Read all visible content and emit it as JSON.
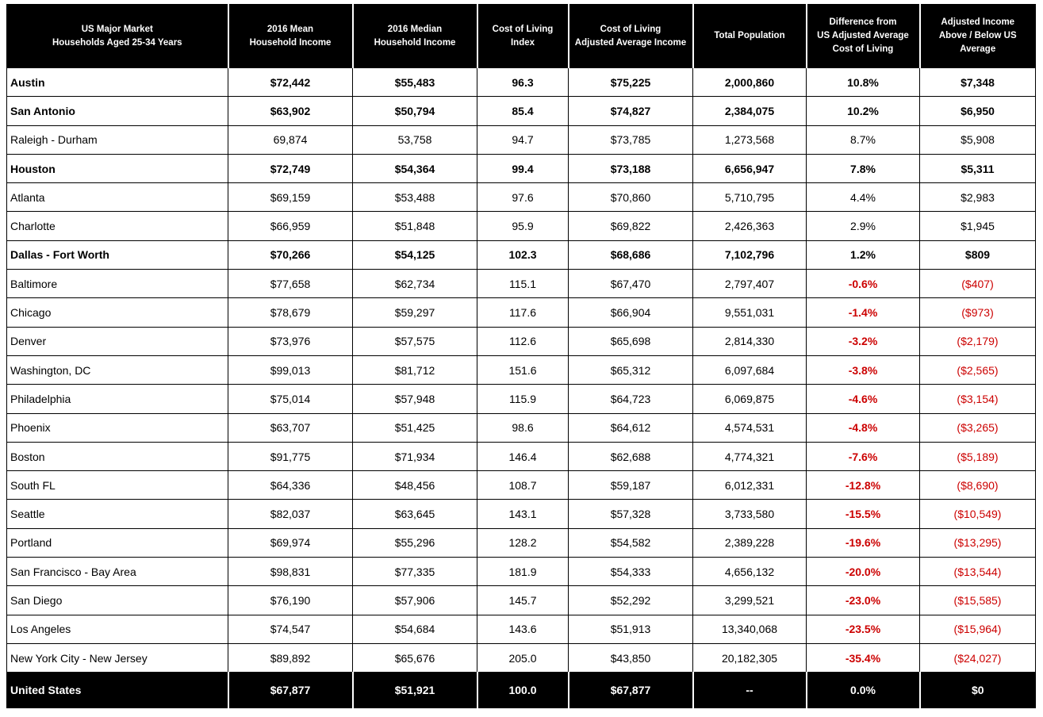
{
  "chart_data": {
    "type": "table",
    "columns": [
      [
        "US Major Market",
        "Households Aged 25-34 Years"
      ],
      [
        "2016 Mean",
        "Household Income"
      ],
      [
        "2016 Median",
        "Household Income"
      ],
      [
        "Cost of Living",
        "Index"
      ],
      [
        "Cost of Living",
        "Adjusted Average Income"
      ],
      [
        "Total Population"
      ],
      [
        "Difference from",
        "US Adjusted Average",
        "Cost of Living"
      ],
      [
        "Adjusted Income",
        "Above / Below US Average"
      ]
    ],
    "rows": [
      {
        "bold": true,
        "cells": [
          "Austin",
          "$72,442",
          "$55,483",
          "96.3",
          "$75,225",
          "2,000,860",
          "10.8%",
          "$7,348"
        ]
      },
      {
        "bold": true,
        "cells": [
          "San Antonio",
          "$63,902",
          "$50,794",
          "85.4",
          "$74,827",
          "2,384,075",
          "10.2%",
          "$6,950"
        ]
      },
      {
        "bold": false,
        "cells": [
          "Raleigh - Durham",
          "69,874",
          "53,758",
          "94.7",
          "$73,785",
          "1,273,568",
          "8.7%",
          "$5,908"
        ]
      },
      {
        "bold": true,
        "cells": [
          "Houston",
          "$72,749",
          "$54,364",
          "99.4",
          "$73,188",
          "6,656,947",
          "7.8%",
          "$5,311"
        ]
      },
      {
        "bold": false,
        "cells": [
          "Atlanta",
          "$69,159",
          "$53,488",
          "97.6",
          "$70,860",
          "5,710,795",
          "4.4%",
          "$2,983"
        ]
      },
      {
        "bold": false,
        "cells": [
          "Charlotte",
          "$66,959",
          "$51,848",
          "95.9",
          "$69,822",
          "2,426,363",
          "2.9%",
          "$1,945"
        ]
      },
      {
        "bold": true,
        "cells": [
          "Dallas - Fort Worth",
          "$70,266",
          "$54,125",
          "102.3",
          "$68,686",
          "7,102,796",
          "1.2%",
          "$809"
        ]
      },
      {
        "bold": false,
        "cells": [
          "Baltimore",
          "$77,658",
          "$62,734",
          "115.1",
          "$67,470",
          "2,797,407",
          "-0.6%",
          "($407)"
        ]
      },
      {
        "bold": false,
        "cells": [
          "Chicago",
          "$78,679",
          "$59,297",
          "117.6",
          "$66,904",
          "9,551,031",
          "-1.4%",
          "($973)"
        ]
      },
      {
        "bold": false,
        "cells": [
          "Denver",
          "$73,976",
          "$57,575",
          "112.6",
          "$65,698",
          "2,814,330",
          "-3.2%",
          "($2,179)"
        ]
      },
      {
        "bold": false,
        "cells": [
          "Washington, DC",
          "$99,013",
          "$81,712",
          "151.6",
          "$65,312",
          "6,097,684",
          "-3.8%",
          "($2,565)"
        ]
      },
      {
        "bold": false,
        "cells": [
          "Philadelphia",
          "$75,014",
          "$57,948",
          "115.9",
          "$64,723",
          "6,069,875",
          "-4.6%",
          "($3,154)"
        ]
      },
      {
        "bold": false,
        "cells": [
          "Phoenix",
          "$63,707",
          "$51,425",
          "98.6",
          "$64,612",
          "4,574,531",
          "-4.8%",
          "($3,265)"
        ]
      },
      {
        "bold": false,
        "cells": [
          "Boston",
          "$91,775",
          "$71,934",
          "146.4",
          "$62,688",
          "4,774,321",
          "-7.6%",
          "($5,189)"
        ]
      },
      {
        "bold": false,
        "cells": [
          "South FL",
          "$64,336",
          "$48,456",
          "108.7",
          "$59,187",
          "6,012,331",
          "-12.8%",
          "($8,690)"
        ]
      },
      {
        "bold": false,
        "cells": [
          "Seattle",
          "$82,037",
          "$63,645",
          "143.1",
          "$57,328",
          "3,733,580",
          "-15.5%",
          "($10,549)"
        ]
      },
      {
        "bold": false,
        "cells": [
          "Portland",
          "$69,974",
          "$55,296",
          "128.2",
          "$54,582",
          "2,389,228",
          "-19.6%",
          "($13,295)"
        ]
      },
      {
        "bold": false,
        "cells": [
          "San Francisco - Bay Area",
          "$98,831",
          "$77,335",
          "181.9",
          "$54,333",
          "4,656,132",
          "-20.0%",
          "($13,544)"
        ]
      },
      {
        "bold": false,
        "cells": [
          "San Diego",
          "$76,190",
          "$57,906",
          "145.7",
          "$52,292",
          "3,299,521",
          "-23.0%",
          "($15,585)"
        ]
      },
      {
        "bold": false,
        "cells": [
          "Los Angeles",
          "$74,547",
          "$54,684",
          "143.6",
          "$51,913",
          "13,340,068",
          "-23.5%",
          "($15,964)"
        ]
      },
      {
        "bold": false,
        "cells": [
          "New York City - New Jersey",
          "$89,892",
          "$65,676",
          "205.0",
          "$43,850",
          "20,182,305",
          "-35.4%",
          "($24,027)"
        ]
      }
    ],
    "total": [
      "United States",
      "$67,877",
      "$51,921",
      "100.0",
      "$67,877",
      "--",
      "0.0%",
      "$0"
    ],
    "colors": {
      "header_bg": "#000000",
      "header_text": "#ffffff",
      "negative": "#cc0000"
    }
  }
}
